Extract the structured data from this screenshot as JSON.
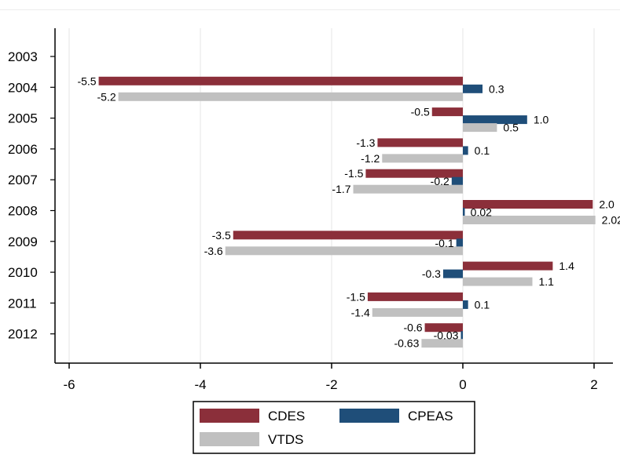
{
  "chart_data": {
    "type": "bar",
    "orientation": "horizontal",
    "categories": [
      "2003",
      "2004",
      "2005",
      "2006",
      "2007",
      "2008",
      "2009",
      "2010",
      "2011",
      "2012"
    ],
    "series": [
      {
        "name": "CDES",
        "color": "#8b2f3a",
        "values": [
          null,
          -5.55,
          -0.47,
          -1.3,
          -1.48,
          1.98,
          -3.5,
          1.37,
          -1.45,
          -0.58
        ],
        "labels": [
          "",
          "-5.5",
          "-0.5",
          "-1.3",
          "-1.5",
          "2.0",
          "-3.5",
          "1.4",
          "-1.5",
          "-0.6"
        ]
      },
      {
        "name": "CPEAS",
        "color": "#1f4e79",
        "values": [
          null,
          0.3,
          0.98,
          0.08,
          -0.17,
          0.02,
          -0.1,
          -0.3,
          0.08,
          -0.03
        ],
        "labels": [
          "",
          "0.3",
          "1.0",
          "0.1",
          "-0.2",
          "0.02",
          "-0.1",
          "-0.3",
          "0.1",
          "-0.03"
        ]
      },
      {
        "name": "VTDS",
        "color": "#c0c0c0",
        "values": [
          null,
          -5.25,
          0.52,
          -1.23,
          -1.67,
          2.02,
          -3.62,
          1.06,
          -1.38,
          -0.63
        ],
        "labels": [
          "",
          "-5.2",
          "0.5",
          "-1.2",
          "-1.7",
          "2.02",
          "-3.6",
          "1.1",
          "-1.4",
          "-0.63"
        ]
      }
    ],
    "xlim": [
      -6.25,
      2.15
    ],
    "xticks": [
      "-6",
      "-4",
      "-2",
      "0",
      "2"
    ],
    "grid": "vertical",
    "legend": "bottom",
    "title": "",
    "xlabel": "",
    "ylabel": ""
  }
}
